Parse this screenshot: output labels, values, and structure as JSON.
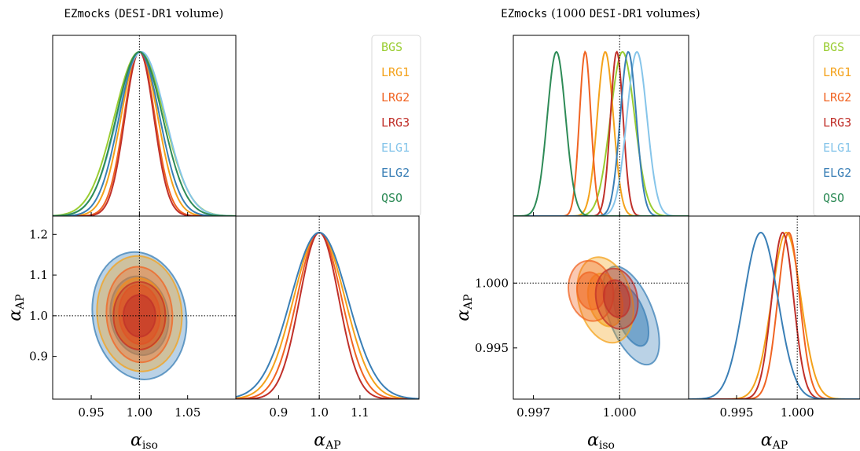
{
  "chart_data": [
    {
      "type": "corner",
      "panel": "left",
      "title_mono": "EZmocks",
      "title_serif_open": " (",
      "title_mono2": "DESI-DR1",
      "title_serif_close": " volume)",
      "params": [
        "α_iso",
        "α_AP"
      ],
      "xlabel": "αiso",
      "xlabel2": "αAP",
      "ylabel": "αAP",
      "true_values": {
        "alpha_iso": 1.0,
        "alpha_AP": 1.0
      },
      "iso_range": [
        0.91,
        1.1
      ],
      "ap_range": [
        0.795,
        1.245
      ],
      "iso_ticks": [
        "0.95",
        "1.00",
        "1.05"
      ],
      "ap_ticks_y": [
        "0.9",
        "1.0",
        "1.1",
        "1.2"
      ],
      "ap_ticks_x": [
        "0.9",
        "1.0",
        "1.1"
      ],
      "legend": [
        "BGS",
        "LRG1",
        "LRG2",
        "LRG3",
        "ELG1",
        "ELG2",
        "QSO"
      ],
      "series": [
        {
          "name": "BGS",
          "color": "#9acd32",
          "iso_mean": 1.0,
          "iso_sigma": 0.026
        },
        {
          "name": "LRG1",
          "color": "#f4a21b",
          "iso_mean": 1.0,
          "iso_sigma": 0.019,
          "ap_mean": 1.0,
          "ap_sigma": 0.063
        },
        {
          "name": "LRG2",
          "color": "#f06423",
          "iso_mean": 1.0,
          "iso_sigma": 0.016,
          "ap_mean": 1.0,
          "ap_sigma": 0.055
        },
        {
          "name": "LRG3",
          "color": "#c0302a",
          "iso_mean": 1.0,
          "iso_sigma": 0.015,
          "ap_mean": 1.0,
          "ap_sigma": 0.048
        },
        {
          "name": "ELG1",
          "color": "#86c5ea",
          "iso_mean": 1.002,
          "iso_sigma": 0.025
        },
        {
          "name": "ELG2",
          "color": "#3a7fb6",
          "iso_mean": 1.0,
          "iso_sigma": 0.021,
          "ap_mean": 1.0,
          "ap_sigma": 0.07
        },
        {
          "name": "QSO",
          "color": "#2e8b57",
          "iso_mean": 1.0,
          "iso_sigma": 0.024
        }
      ],
      "contours": [
        {
          "name": "ELG2",
          "color": "#3a7fb6",
          "iso_mean": 1.0,
          "iso_sigma": 0.02,
          "ap_mean": 1.0,
          "ap_sigma": 0.064,
          "rho": -0.1
        },
        {
          "name": "LRG1",
          "color": "#f4a21b",
          "iso_mean": 1.0,
          "iso_sigma": 0.018,
          "ap_mean": 1.005,
          "ap_sigma": 0.058,
          "rho": -0.05
        },
        {
          "name": "LRG2",
          "color": "#f06423",
          "iso_mean": 1.0,
          "iso_sigma": 0.014,
          "ap_mean": 1.003,
          "ap_sigma": 0.048,
          "rho": -0.05
        },
        {
          "name": "LRG3",
          "color": "#c0302a",
          "iso_mean": 1.0,
          "iso_sigma": 0.011,
          "ap_mean": 1.0,
          "ap_sigma": 0.034,
          "rho": 0.0
        }
      ]
    },
    {
      "type": "corner",
      "panel": "right",
      "title_mono": "EZmocks",
      "title_serif_open": " (1000 ",
      "title_mono2": "DESI-DR1",
      "title_serif_close": " volumes)",
      "params": [
        "α_iso",
        "α_AP"
      ],
      "xlabel": "αiso",
      "xlabel2": "αAP",
      "ylabel": "αAP",
      "true_values": {
        "alpha_iso": 1.0,
        "alpha_AP": 1.0
      },
      "iso_range": [
        0.9963,
        1.0024
      ],
      "ap_range": [
        0.99105,
        1.00517
      ],
      "iso_ticks": [
        "0.997",
        "1.000"
      ],
      "ap_ticks_y": [
        "0.995",
        "1.000"
      ],
      "ap_ticks_x": [
        "0.995",
        "1.000"
      ],
      "legend": [
        "BGS",
        "LRG1",
        "LRG2",
        "LRG3",
        "ELG1",
        "ELG2",
        "QSO"
      ],
      "series": [
        {
          "name": "BGS",
          "color": "#9acd32",
          "iso_mean": 1.0001,
          "iso_sigma": 0.00042
        },
        {
          "name": "LRG1",
          "color": "#f4a21b",
          "iso_mean": 0.9995,
          "iso_sigma": 0.00028,
          "ap_mean": 0.9991,
          "ap_sigma": 0.0012
        },
        {
          "name": "LRG2",
          "color": "#f06423",
          "iso_mean": 0.9988,
          "iso_sigma": 0.0002,
          "ap_mean": 0.9993,
          "ap_sigma": 0.0009
        },
        {
          "name": "LRG3",
          "color": "#c0302a",
          "iso_mean": 0.9999,
          "iso_sigma": 0.00022,
          "ap_mean": 0.9988,
          "ap_sigma": 0.0009
        },
        {
          "name": "ELG1",
          "color": "#86c5ea",
          "iso_mean": 1.0006,
          "iso_sigma": 0.00035
        },
        {
          "name": "ELG2",
          "color": "#3a7fb6",
          "iso_mean": 1.0003,
          "iso_sigma": 0.00028,
          "ap_mean": 0.997,
          "ap_sigma": 0.0014
        },
        {
          "name": "QSO",
          "color": "#2e8b57",
          "iso_mean": 0.9978,
          "iso_sigma": 0.00032
        }
      ],
      "contours": [
        {
          "name": "ELG2",
          "color": "#3a7fb6",
          "iso_mean": 1.0004,
          "iso_sigma": 0.0004,
          "ap_mean": 0.9975,
          "ap_sigma": 0.00155,
          "rho": -0.55
        },
        {
          "name": "LRG1",
          "color": "#f4a21b",
          "iso_mean": 0.9995,
          "iso_sigma": 0.0004,
          "ap_mean": 0.9987,
          "ap_sigma": 0.00135,
          "rho": -0.25
        },
        {
          "name": "LRG2",
          "color": "#f06423",
          "iso_mean": 0.999,
          "iso_sigma": 0.00032,
          "ap_mean": 0.9994,
          "ap_sigma": 0.00095,
          "rho": -0.1
        },
        {
          "name": "LRG3",
          "color": "#c0302a",
          "iso_mean": 0.9999,
          "iso_sigma": 0.0003,
          "ap_mean": 0.9988,
          "ap_sigma": 0.00095,
          "rho": -0.15
        }
      ]
    }
  ]
}
